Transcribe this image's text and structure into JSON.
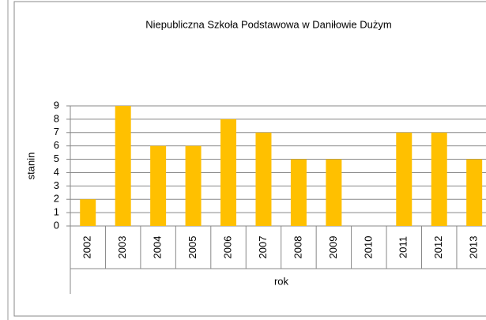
{
  "chart_data": {
    "type": "bar",
    "title": "Niepubliczna Szkoła Podstawowa w Daniłowie Dużym",
    "x_label": "rok",
    "y_label": "stanin",
    "categories": [
      "2002",
      "2003",
      "2004",
      "2005",
      "2006",
      "2007",
      "2008",
      "2009",
      "2010",
      "2011",
      "2012",
      "2013"
    ],
    "values": [
      2,
      9,
      6,
      6,
      8,
      7,
      5,
      5,
      null,
      7,
      7,
      5
    ],
    "color": "#ffc000",
    "ylim": [
      0,
      9
    ],
    "yticks": [
      0,
      1,
      2,
      3,
      4,
      5,
      6,
      7,
      8,
      9
    ],
    "grid": true
  }
}
